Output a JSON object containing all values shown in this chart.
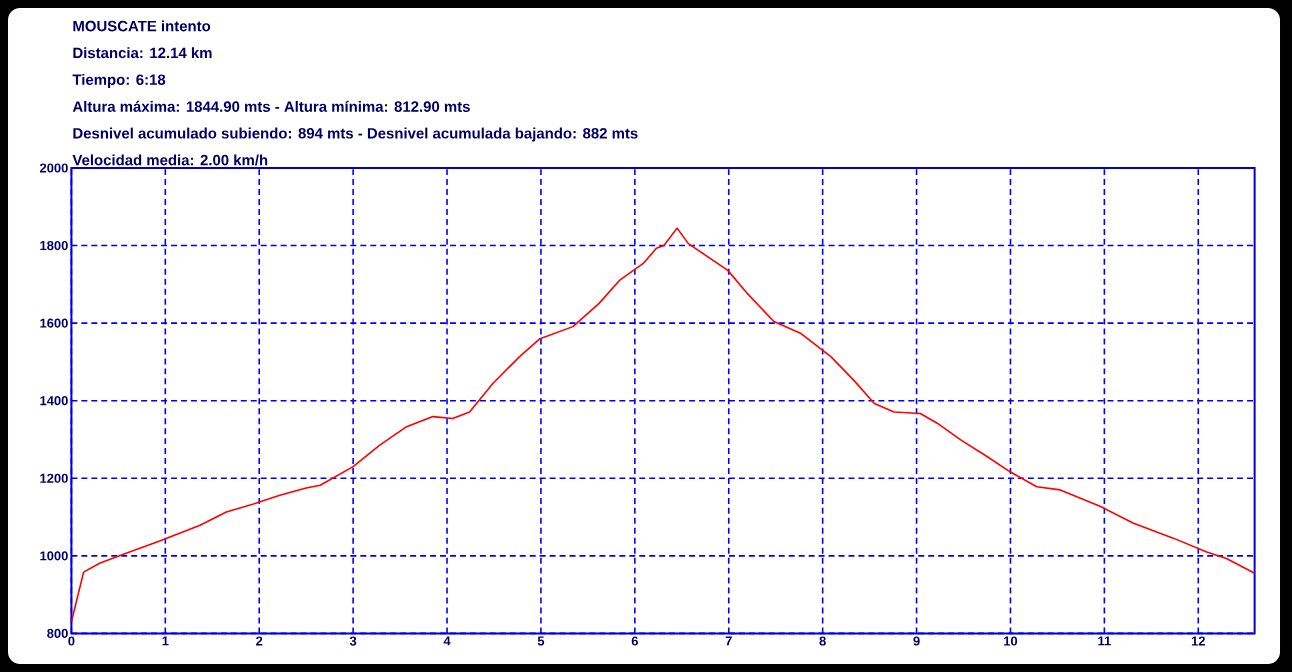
{
  "chart_data": {
    "type": "line",
    "title": "MOUSCATE intento",
    "annotations": [
      "Distancia: 12.14 km",
      "Tiempo: 6:18",
      "Altura máxima: 1844.90 mts - Altura mínima: 812.90 mts",
      "Desnivel acumulado subiendo: 894 mts - Desnivel acumulada bajando: 882 mts",
      "Velocidad media: 2.00 km/h"
    ],
    "x": [
      0,
      0.13,
      0.3,
      0.59,
      0.94,
      1.37,
      1.65,
      1.97,
      2.22,
      2.5,
      2.65,
      3.0,
      3.28,
      3.57,
      3.85,
      4.06,
      4.24,
      4.49,
      4.77,
      4.99,
      5.34,
      5.62,
      5.84,
      6.09,
      6.23,
      6.31,
      6.45,
      6.57,
      6.99,
      7.2,
      7.48,
      7.77,
      8.09,
      8.33,
      8.55,
      8.76,
      9.04,
      9.22,
      9.47,
      9.75,
      10.0,
      10.28,
      10.53,
      10.96,
      11.31,
      11.74,
      12.09,
      12.3,
      12.6
    ],
    "series": [
      {
        "color": "#ff0000",
        "values": [
          830,
          958,
          981,
          1007,
          1038,
          1079,
          1113,
          1136,
          1156,
          1175,
          1182,
          1230,
          1285,
          1333,
          1359,
          1354,
          1371,
          1445,
          1513,
          1560,
          1591,
          1651,
          1711,
          1754,
          1793,
          1800,
          1845,
          1805,
          1736,
          1676,
          1604,
          1573,
          1513,
          1453,
          1393,
          1371,
          1367,
          1342,
          1299,
          1256,
          1216,
          1178,
          1170,
          1127,
          1084,
          1045,
          1010,
          993,
          955
        ]
      }
    ],
    "xlim": [
      0,
      12.6
    ],
    "ylim": [
      800,
      2000
    ],
    "xticks": [
      0,
      1,
      2,
      3,
      4,
      5,
      6,
      7,
      8,
      9,
      10,
      11,
      12
    ],
    "yticks": [
      800,
      1000,
      1200,
      1400,
      1600,
      1800,
      2000
    ],
    "grid": true,
    "line_style": "solid"
  }
}
